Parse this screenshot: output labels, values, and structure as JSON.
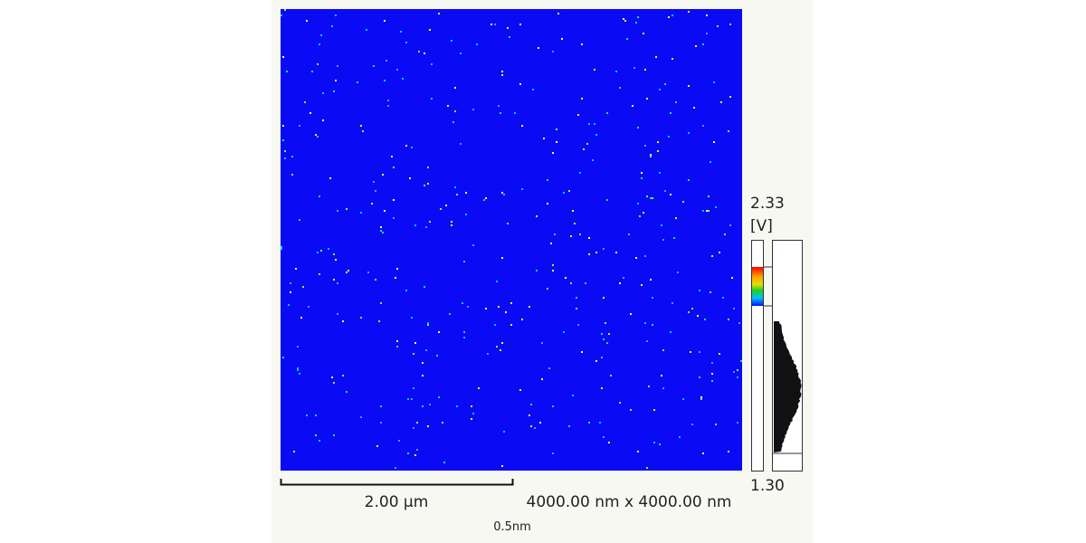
{
  "scale_max": "2.33",
  "unit": "[V]",
  "scale_min": "1.30",
  "scale_bar_label": "2.00 μm",
  "scan_size": "4000.00 nm x 4000.00 nm",
  "footer": "0.5nm"
}
